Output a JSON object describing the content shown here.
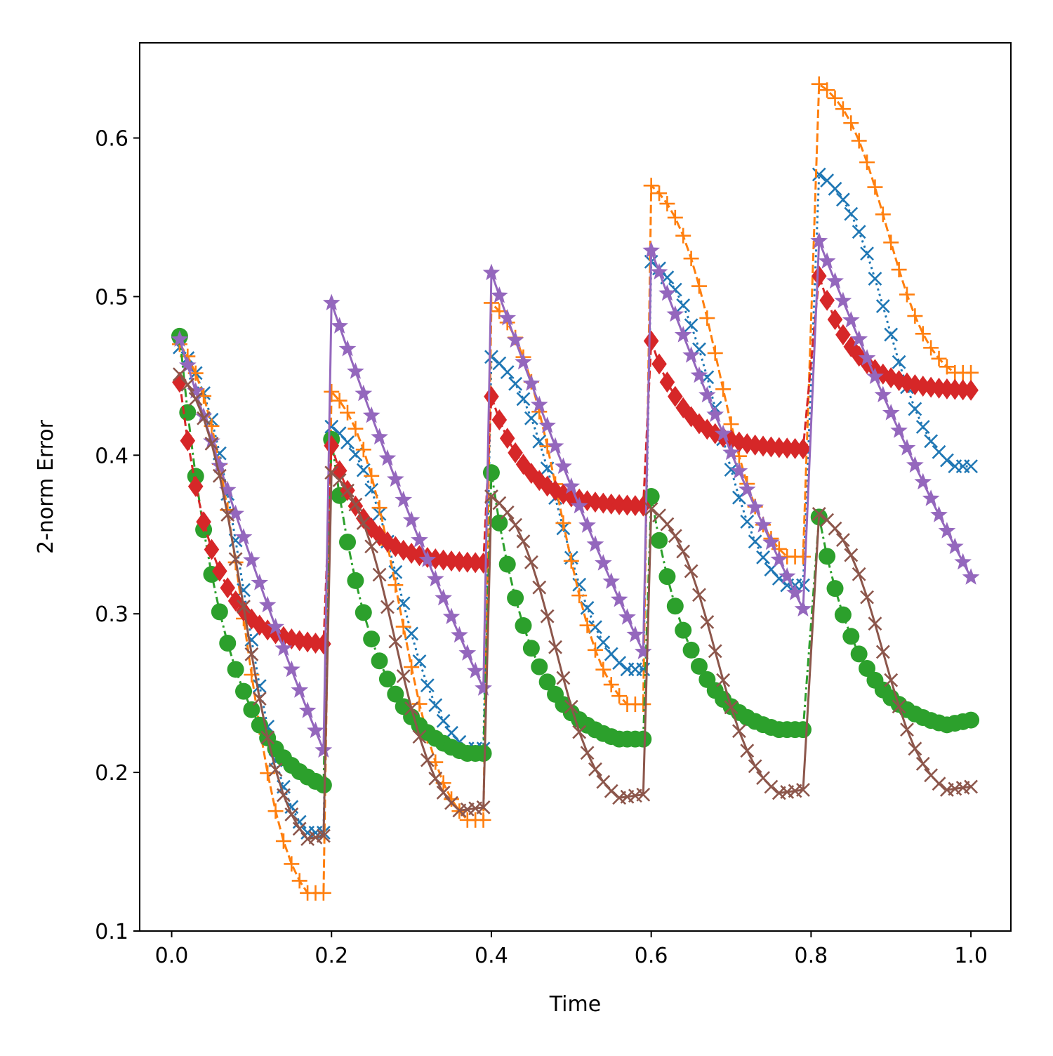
{
  "chart_data": {
    "type": "line",
    "title": "",
    "xlabel": "Time",
    "ylabel": "2-norm Error",
    "xlim": [
      -0.04,
      1.05
    ],
    "ylim": [
      0.1,
      0.66
    ],
    "xticks": [
      0.0,
      0.2,
      0.4,
      0.6,
      0.8,
      1.0
    ],
    "xtick_labels": [
      "0.0",
      "0.2",
      "0.4",
      "0.6",
      "0.8",
      "1.0"
    ],
    "yticks": [
      0.1,
      0.2,
      0.3,
      0.4,
      0.5,
      0.6
    ],
    "ytick_labels": [
      "0.1",
      "0.2",
      "0.3",
      "0.4",
      "0.5",
      "0.6"
    ],
    "grid": false,
    "legend": "none",
    "series": [
      {
        "name": "blue-x-series",
        "color": "#1f77b4",
        "marker": "x",
        "linestyle": "dotted",
        "segments": [
          {
            "t0": 0.01,
            "t1": 0.19,
            "start": 0.468,
            "end": 0.162,
            "min": 0.162,
            "settle": 0.02,
            "shape": "sigmoid"
          },
          {
            "t0": 0.2,
            "t1": 0.39,
            "start": 0.418,
            "end": 0.215,
            "min": 0.215,
            "settle": 0.02,
            "shape": "sigmoid"
          },
          {
            "t0": 0.4,
            "t1": 0.59,
            "start": 0.462,
            "end": 0.265,
            "min": 0.265,
            "settle": 0.02,
            "shape": "sigmoid"
          },
          {
            "t0": 0.6,
            "t1": 0.79,
            "start": 0.522,
            "end": 0.318,
            "min": 0.318,
            "settle": 0.02,
            "shape": "sigmoid"
          },
          {
            "t0": 0.81,
            "t1": 1.0,
            "start": 0.577,
            "end": 0.393,
            "min": 0.393,
            "settle": 0.02,
            "shape": "sigmoid"
          }
        ]
      },
      {
        "name": "orange-plus-series",
        "color": "#ff7f0e",
        "marker": "+",
        "linestyle": "dashed",
        "segments": [
          {
            "t0": 0.01,
            "t1": 0.19,
            "start": 0.47,
            "end": 0.124,
            "min": 0.124,
            "settle": 0.02,
            "shape": "sigmoid"
          },
          {
            "t0": 0.2,
            "t1": 0.39,
            "start": 0.44,
            "end": 0.17,
            "min": 0.17,
            "settle": 0.02,
            "shape": "sigmoid"
          },
          {
            "t0": 0.4,
            "t1": 0.59,
            "start": 0.496,
            "end": 0.243,
            "min": 0.243,
            "settle": 0.02,
            "shape": "sigmoid"
          },
          {
            "t0": 0.6,
            "t1": 0.79,
            "start": 0.57,
            "end": 0.336,
            "min": 0.336,
            "settle": 0.02,
            "shape": "sigmoid"
          },
          {
            "t0": 0.81,
            "t1": 1.0,
            "start": 0.634,
            "end": 0.452,
            "min": 0.452,
            "settle": 0.02,
            "shape": "sigmoid"
          }
        ]
      },
      {
        "name": "green-circle-series",
        "color": "#2ca02c",
        "marker": "o",
        "linestyle": "dashdot",
        "segments": [
          {
            "t0": 0.01,
            "t1": 0.19,
            "start": 0.475,
            "end": 0.192,
            "min": 0.192,
            "settle": 0.0,
            "shape": "decay"
          },
          {
            "t0": 0.2,
            "t1": 0.39,
            "start": 0.41,
            "end": 0.212,
            "min": 0.212,
            "settle": 0.02,
            "shape": "decay"
          },
          {
            "t0": 0.4,
            "t1": 0.59,
            "start": 0.389,
            "end": 0.221,
            "min": 0.221,
            "settle": 0.03,
            "shape": "decay"
          },
          {
            "t0": 0.6,
            "t1": 0.79,
            "start": 0.374,
            "end": 0.227,
            "min": 0.227,
            "settle": 0.03,
            "shape": "decay"
          },
          {
            "t0": 0.81,
            "t1": 1.0,
            "start": 0.361,
            "end": 0.233,
            "min": 0.23,
            "settle": 0.03,
            "shape": "decay"
          }
        ]
      },
      {
        "name": "red-diamond-series",
        "color": "#d62728",
        "marker": "D",
        "linestyle": "dashed",
        "segments": [
          {
            "t0": 0.01,
            "t1": 0.19,
            "start": 0.446,
            "end": 0.281,
            "min": 0.281,
            "settle": 0.0,
            "shape": "fastdecay"
          },
          {
            "t0": 0.2,
            "t1": 0.39,
            "start": 0.406,
            "end": 0.332,
            "min": 0.332,
            "settle": 0.0,
            "shape": "fastdecay"
          },
          {
            "t0": 0.4,
            "t1": 0.59,
            "start": 0.437,
            "end": 0.368,
            "min": 0.368,
            "settle": 0.0,
            "shape": "fastdecay"
          },
          {
            "t0": 0.6,
            "t1": 0.79,
            "start": 0.472,
            "end": 0.404,
            "min": 0.404,
            "settle": 0.0,
            "shape": "fastdecay"
          },
          {
            "t0": 0.81,
            "t1": 1.0,
            "start": 0.513,
            "end": 0.441,
            "min": 0.441,
            "settle": 0.0,
            "shape": "fastdecay"
          }
        ]
      },
      {
        "name": "purple-star-series",
        "color": "#9467bd",
        "marker": "*",
        "linestyle": "solid",
        "segments": [
          {
            "t0": 0.01,
            "t1": 0.19,
            "start": 0.473,
            "end": 0.214,
            "min": 0.214,
            "settle": 0.0,
            "shape": "linearish"
          },
          {
            "t0": 0.2,
            "t1": 0.39,
            "start": 0.496,
            "end": 0.253,
            "min": 0.253,
            "settle": 0.0,
            "shape": "linearish"
          },
          {
            "t0": 0.4,
            "t1": 0.59,
            "start": 0.515,
            "end": 0.276,
            "min": 0.276,
            "settle": 0.0,
            "shape": "linearish"
          },
          {
            "t0": 0.6,
            "t1": 0.79,
            "start": 0.529,
            "end": 0.303,
            "min": 0.303,
            "settle": 0.0,
            "shape": "linearish"
          },
          {
            "t0": 0.81,
            "t1": 1.0,
            "start": 0.535,
            "end": 0.323,
            "min": 0.323,
            "settle": 0.0,
            "shape": "linearish"
          }
        ]
      },
      {
        "name": "brown-x-series",
        "color": "#8c564b",
        "marker": "x",
        "linestyle": "solid",
        "segments": [
          {
            "t0": 0.01,
            "t1": 0.19,
            "start": 0.451,
            "end": 0.16,
            "min": 0.158,
            "settle": 0.02,
            "shape": "sigmoid"
          },
          {
            "t0": 0.2,
            "t1": 0.39,
            "start": 0.389,
            "end": 0.178,
            "min": 0.176,
            "settle": 0.03,
            "shape": "sigmoid"
          },
          {
            "t0": 0.4,
            "t1": 0.59,
            "start": 0.374,
            "end": 0.186,
            "min": 0.184,
            "settle": 0.03,
            "shape": "sigmoid"
          },
          {
            "t0": 0.6,
            "t1": 0.79,
            "start": 0.366,
            "end": 0.189,
            "min": 0.187,
            "settle": 0.03,
            "shape": "sigmoid"
          },
          {
            "t0": 0.81,
            "t1": 1.0,
            "start": 0.363,
            "end": 0.191,
            "min": 0.189,
            "settle": 0.03,
            "shape": "sigmoid"
          }
        ]
      }
    ]
  }
}
